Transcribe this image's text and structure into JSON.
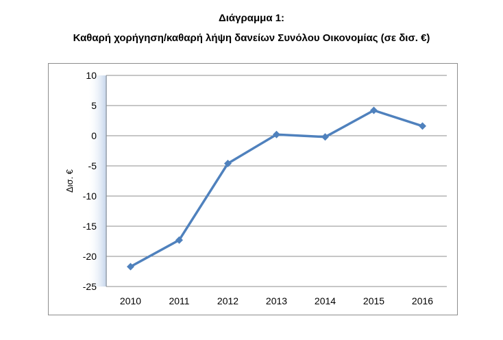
{
  "title_line1": "Διάγραμμα 1:",
  "title_line2": "Καθαρή χορήγηση/καθαρή λήψη δανείων Συνόλου Οικονομίας (σε δισ. €)",
  "chart_data": {
    "type": "line",
    "x": [
      "2010",
      "2011",
      "2012",
      "2013",
      "2014",
      "2015",
      "2016"
    ],
    "series": [
      {
        "values": [
          -21.7,
          -17.3,
          -4.6,
          0.2,
          -0.2,
          4.2,
          1.6
        ],
        "color": "#4f81bd",
        "marker": "diamond"
      }
    ],
    "ylabel": "Δισ. €",
    "ylim": [
      -25,
      10
    ],
    "yticks": [
      10,
      5,
      0,
      -5,
      -10,
      -15,
      -20,
      -25
    ],
    "grid": true,
    "legend": "none"
  }
}
